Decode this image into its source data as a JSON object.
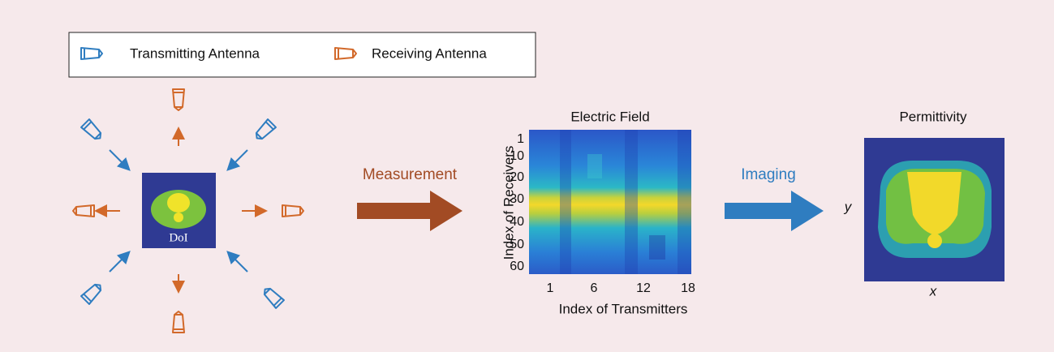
{
  "legend": {
    "transmitting": "Transmitting Antenna",
    "receiving": "Receiving Antenna"
  },
  "doi_label": "DoI",
  "measurement_label": "Measurement",
  "imaging_label": "Imaging",
  "electric_field": {
    "title": "Electric Field",
    "y_label": "Index of Receivers",
    "x_label": "Index of Transmitters",
    "yticks": [
      1,
      10,
      20,
      30,
      40,
      50,
      60
    ],
    "xticks": [
      1,
      6,
      12,
      18
    ]
  },
  "permittivity": {
    "title": "Permittivity",
    "y_label": "y",
    "x_label": "x"
  }
}
